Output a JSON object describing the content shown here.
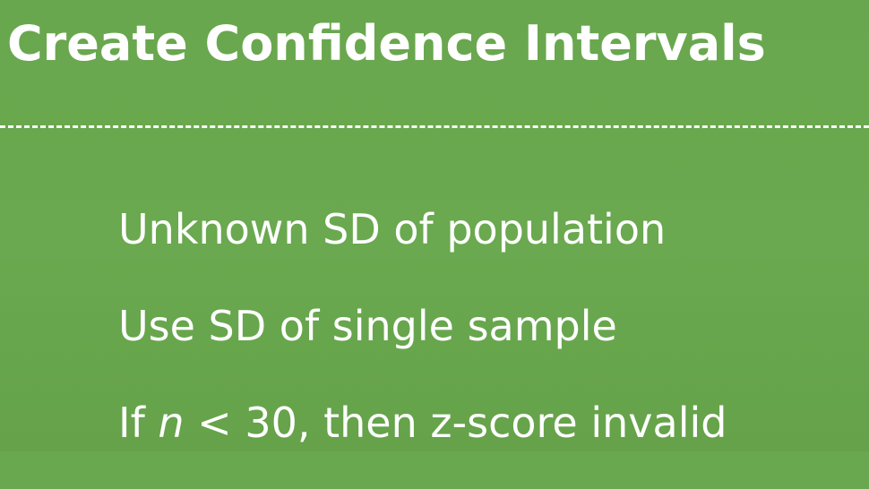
{
  "slide": {
    "title": "Create Confidence Intervals",
    "bullets": [
      "Unknown SD of population",
      "Use SD of single sample"
    ],
    "last_bullet": {
      "prefix": "If ",
      "variable": "n",
      "suffix": " < 30, then z-score invalid"
    },
    "background_color": "#6aa84f",
    "text_color": "#ffffff"
  }
}
